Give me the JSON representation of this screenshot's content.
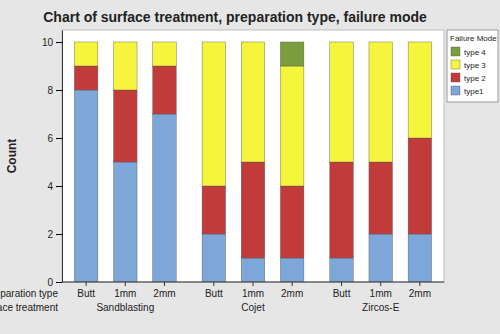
{
  "chart_data": {
    "type": "bar",
    "stacked": true,
    "title": "Chart of surface treatment, preparation type, failure mode",
    "y_label": "Count",
    "categories": [
      "Butt",
      "1mm",
      "2mm",
      "Butt",
      "1mm",
      "2mm",
      "Butt",
      "1mm",
      "2mm"
    ],
    "category_groups": [
      "Sandblasting",
      "Cojet",
      "Zircos-E"
    ],
    "x_level_labels": [
      "preparation type",
      "surface treatment"
    ],
    "legend_title": "Failure Mode",
    "legend": "right",
    "ylim": [
      0,
      10.5
    ],
    "yticks": [
      0,
      2,
      4,
      6,
      8,
      10
    ],
    "series": [
      {
        "name": "type1",
        "color": "#7da7d9",
        "values": [
          8,
          5,
          7,
          2,
          1,
          1,
          1,
          2,
          2
        ]
      },
      {
        "name": "type 2",
        "color": "#c23b3b",
        "values": [
          1,
          3,
          2,
          2,
          4,
          3,
          4,
          3,
          4
        ]
      },
      {
        "name": "type 3",
        "color": "#f5f53d",
        "values": [
          1,
          2,
          1,
          6,
          5,
          5,
          5,
          5,
          4
        ]
      },
      {
        "name": "type 4",
        "color": "#7c9d3d",
        "values": [
          0,
          0,
          0,
          0,
          0,
          1,
          0,
          0,
          0
        ]
      }
    ]
  }
}
